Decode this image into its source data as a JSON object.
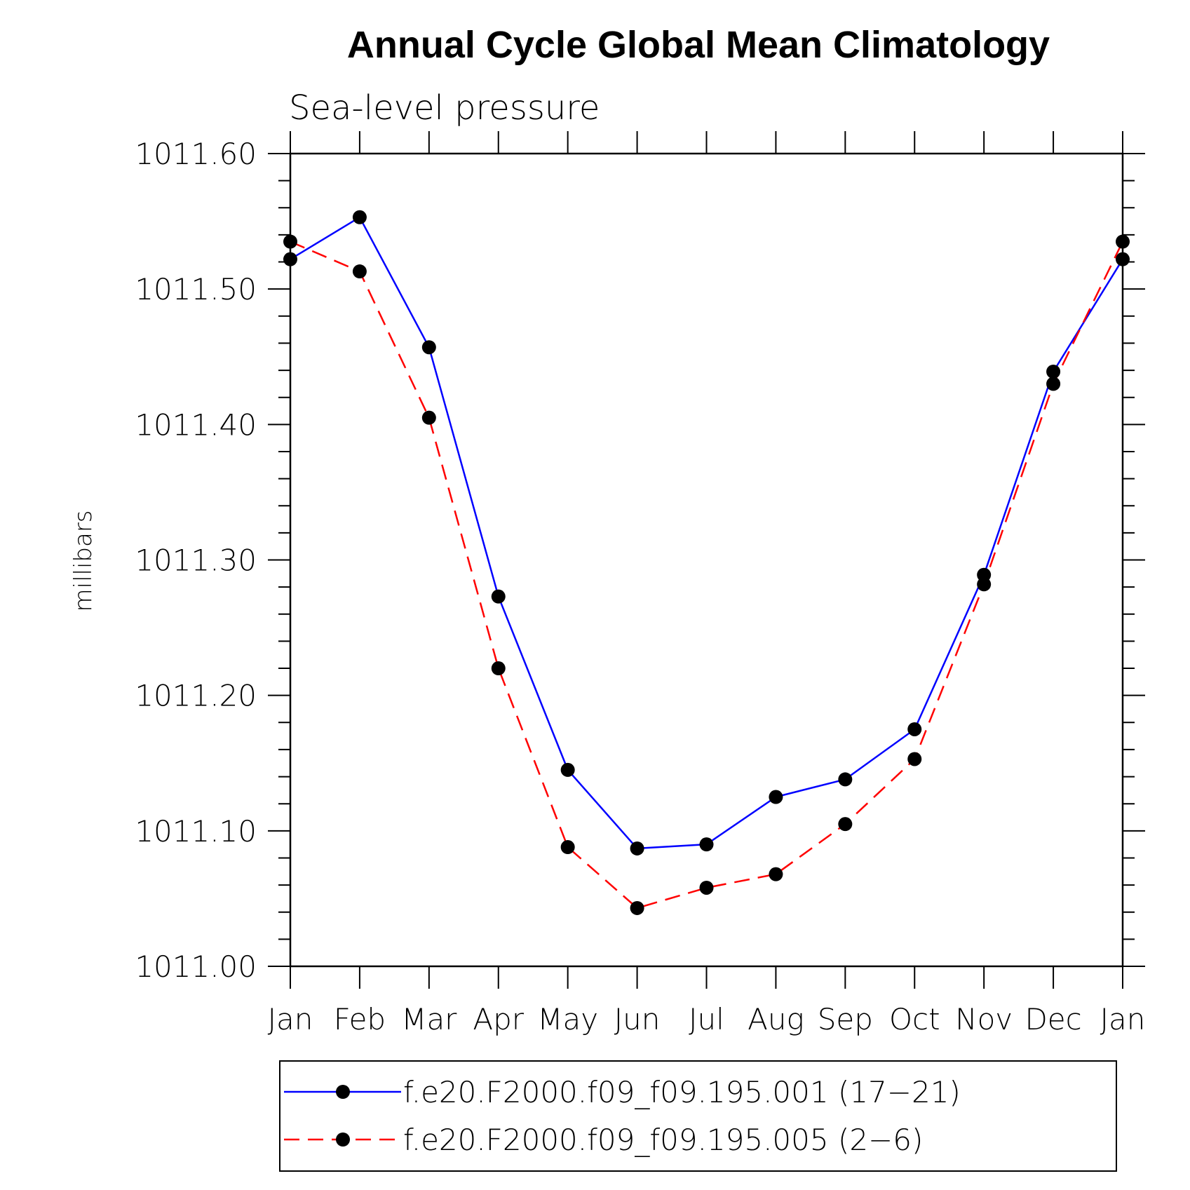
{
  "chart_data": {
    "type": "line",
    "title": "Annual Cycle Global Mean Climatology",
    "subtitle": "Sea-level pressure",
    "xlabel": "",
    "ylabel": "millibars",
    "categories": [
      "Jan",
      "Feb",
      "Mar",
      "Apr",
      "May",
      "Jun",
      "Jul",
      "Aug",
      "Sep",
      "Oct",
      "Nov",
      "Dec",
      "Jan"
    ],
    "yticks": [
      "1011.00",
      "1011.10",
      "1011.20",
      "1011.30",
      "1011.40",
      "1011.50",
      "1011.60"
    ],
    "ylim": [
      1011.0,
      1011.6
    ],
    "grid": false,
    "legend_position": "bottom",
    "series": [
      {
        "name": "f.e20.F2000.f09_f09.195.001 (17−21)",
        "color": "#0000ff",
        "dash": "solid",
        "marker": "circle",
        "values": [
          1011.522,
          1011.553,
          1011.457,
          1011.273,
          1011.145,
          1011.087,
          1011.09,
          1011.125,
          1011.138,
          1011.175,
          1011.289,
          1011.439,
          1011.522
        ]
      },
      {
        "name": "f.e20.F2000.f09_f09.195.005 (2−6)",
        "color": "#ff0000",
        "dash": "dashed",
        "marker": "circle",
        "values": [
          1011.535,
          1011.513,
          1011.405,
          1011.22,
          1011.088,
          1011.043,
          1011.058,
          1011.068,
          1011.105,
          1011.153,
          1011.282,
          1011.43,
          1011.535
        ]
      }
    ]
  }
}
